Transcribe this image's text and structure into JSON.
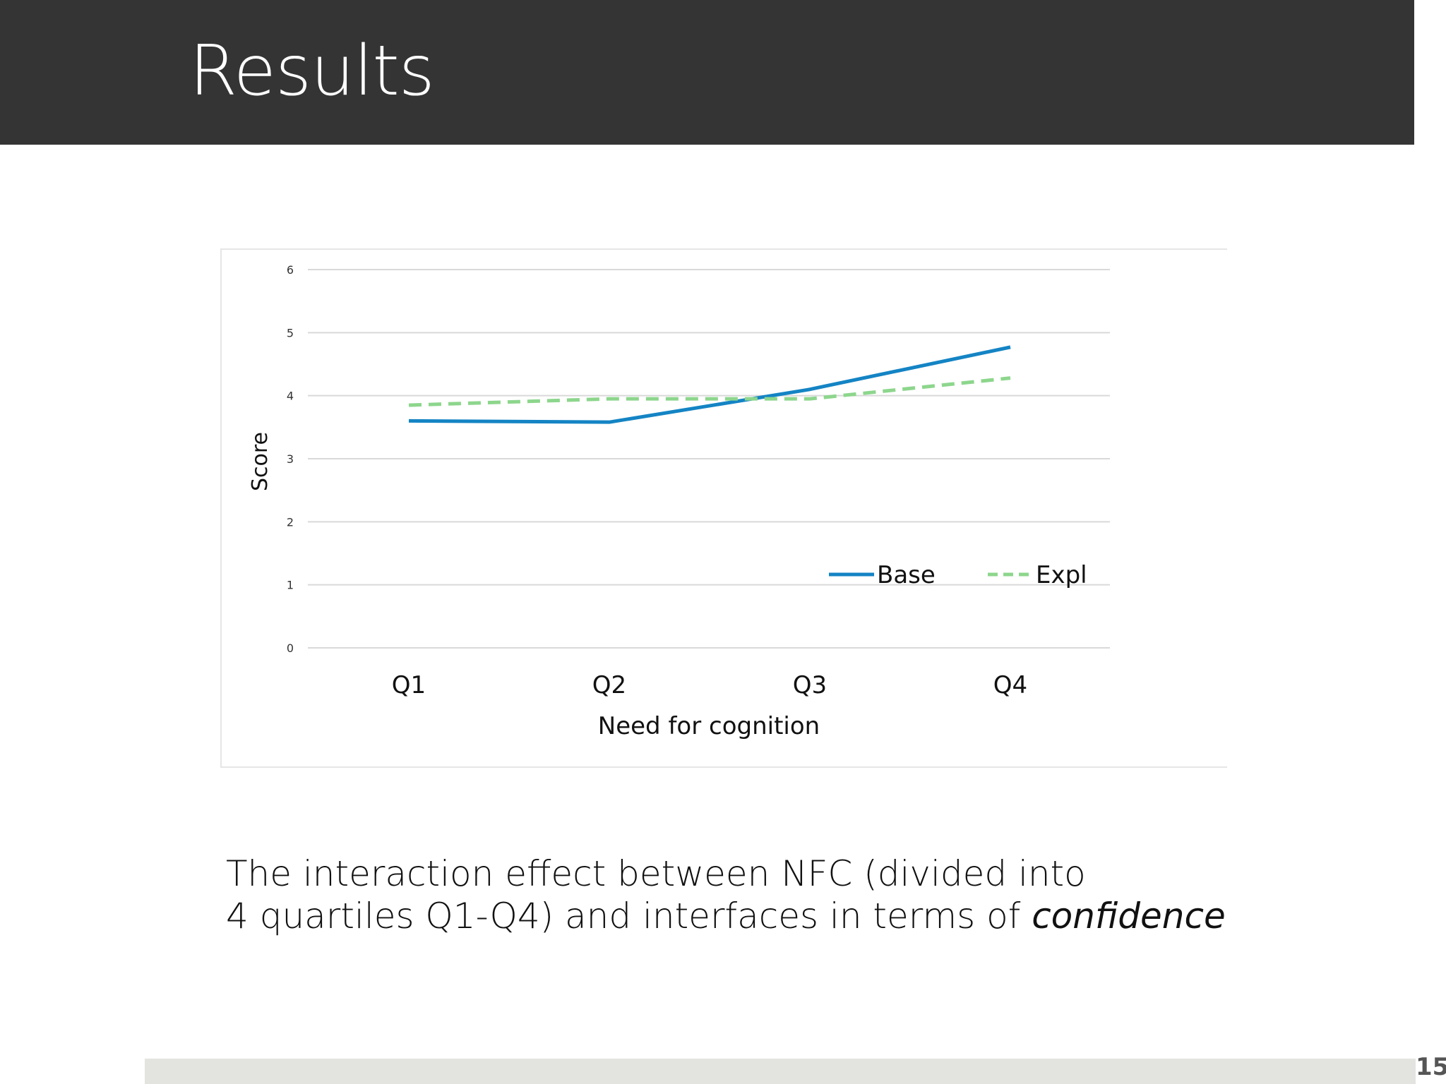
{
  "slide": {
    "title": "Results",
    "page_number": "15",
    "caption_line1": "The interaction effect between NFC (divided into",
    "caption_line2_prefix": "4 quartiles Q1-Q4) and interfaces in terms of ",
    "caption_line2_emph": "confidence"
  },
  "colors": {
    "title_bar": "#343434",
    "footer_bar": "#e3e4e0",
    "base_series": "#1484c4",
    "expl_series": "#8dd68d",
    "gridline": "#d9d9d9"
  },
  "chart_data": {
    "type": "line",
    "title": "",
    "xlabel": "Need for cognition",
    "ylabel": "Score",
    "categories": [
      "Q1",
      "Q2",
      "Q3",
      "Q4"
    ],
    "ylim": [
      0,
      6
    ],
    "yticks": [
      "0",
      "1",
      "2",
      "3",
      "4",
      "5",
      "6"
    ],
    "grid": true,
    "legend_position": "bottom-right",
    "series": [
      {
        "name": "Base",
        "values": [
          3.6,
          3.58,
          4.1,
          4.77
        ],
        "style": "solid"
      },
      {
        "name": "Expl",
        "values": [
          3.85,
          3.95,
          3.95,
          4.28
        ],
        "style": "dashed"
      }
    ]
  }
}
